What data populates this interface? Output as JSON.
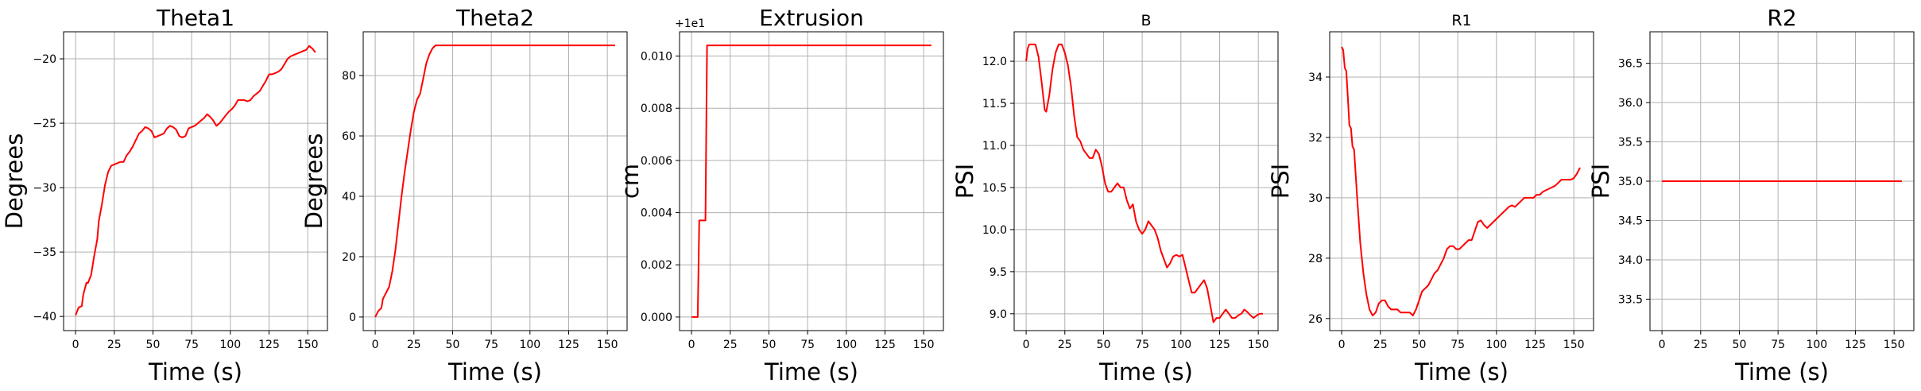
{
  "chart_data": [
    {
      "type": "line",
      "title": "Theta1",
      "xlabel": "Time (s)",
      "ylabel": "Degrees",
      "offset_label": "",
      "xlim": [
        -7.75,
        162.75
      ],
      "ylim": [
        -41.1,
        -17.9
      ],
      "xticks": [
        0,
        25,
        50,
        75,
        100,
        125,
        150
      ],
      "yticks": [
        -40,
        -35,
        -30,
        -25,
        -20
      ],
      "ytick_labels": [
        "−40",
        "−35",
        "−30",
        "−25",
        "−20"
      ],
      "grid": true,
      "color": "#ff0000",
      "x": [
        0,
        2,
        4,
        5,
        7,
        8,
        10,
        12,
        14,
        15,
        17,
        19,
        21,
        23,
        25,
        27,
        29,
        31,
        33,
        35,
        37,
        39,
        41,
        43,
        45,
        47,
        49,
        51,
        53,
        55,
        57,
        59,
        61,
        63,
        65,
        67,
        69,
        71,
        73,
        75,
        77,
        79,
        81,
        83,
        85,
        87,
        89,
        91,
        93,
        95,
        97,
        99,
        101,
        103,
        105,
        107,
        109,
        111,
        113,
        115,
        117,
        119,
        121,
        123,
        125,
        127,
        129,
        131,
        133,
        135,
        137,
        139,
        141,
        143,
        145,
        147,
        149,
        151,
        153,
        155
      ],
      "values": [
        -39.9,
        -39.3,
        -39.2,
        -38.3,
        -37.4,
        -37.4,
        -36.8,
        -35.3,
        -34.0,
        -32.6,
        -31.3,
        -29.8,
        -28.8,
        -28.3,
        -28.2,
        -28.1,
        -28.0,
        -28.0,
        -27.5,
        -27.2,
        -26.8,
        -26.3,
        -25.8,
        -25.6,
        -25.3,
        -25.4,
        -25.6,
        -26.1,
        -26.0,
        -25.9,
        -25.8,
        -25.4,
        -25.2,
        -25.3,
        -25.5,
        -26.0,
        -26.1,
        -26.0,
        -25.4,
        -25.3,
        -25.2,
        -25.0,
        -24.8,
        -24.6,
        -24.3,
        -24.5,
        -24.8,
        -25.2,
        -25.0,
        -24.7,
        -24.4,
        -24.1,
        -23.9,
        -23.6,
        -23.2,
        -23.2,
        -23.2,
        -23.3,
        -23.2,
        -22.9,
        -22.7,
        -22.5,
        -22.1,
        -21.7,
        -21.2,
        -21.2,
        -21.1,
        -21.0,
        -20.8,
        -20.4,
        -20.0,
        -19.8,
        -19.7,
        -19.6,
        -19.5,
        -19.4,
        -19.3,
        -19.0,
        -19.2,
        -19.5
      ]
    },
    {
      "type": "line",
      "title": "Theta2",
      "xlabel": "Time (s)",
      "ylabel": "Degrees",
      "offset_label": "",
      "xlim": [
        -7.75,
        162.75
      ],
      "ylim": [
        -4.5,
        94.5
      ],
      "xticks": [
        0,
        25,
        50,
        75,
        100,
        125,
        150
      ],
      "yticks": [
        0,
        20,
        40,
        60,
        80
      ],
      "ytick_labels": [
        "0",
        "20",
        "40",
        "60",
        "80"
      ],
      "grid": true,
      "color": "#ff0000",
      "x": [
        0,
        2,
        4,
        5,
        7,
        9,
        11,
        13,
        15,
        17,
        19,
        21,
        23,
        25,
        27,
        29,
        31,
        33,
        35,
        37,
        39,
        40,
        45,
        60,
        80,
        100,
        120,
        140,
        155
      ],
      "values": [
        0,
        2,
        3,
        6,
        8,
        10,
        15,
        22,
        31,
        40,
        48,
        55,
        62,
        68,
        72,
        74,
        79,
        84,
        87,
        89,
        90,
        90,
        90,
        90,
        90,
        90,
        90,
        90,
        90
      ]
    },
    {
      "type": "line",
      "title": "Extrusion",
      "xlabel": "Time (s)",
      "ylabel": "cm",
      "offset_label": "+1e1",
      "xlim": [
        -7.75,
        162.75
      ],
      "ylim": [
        -0.00052,
        0.01093
      ],
      "xticks": [
        0,
        25,
        50,
        75,
        100,
        125,
        150
      ],
      "yticks": [
        0.0,
        0.002,
        0.004,
        0.006,
        0.008,
        0.01
      ],
      "ytick_labels": [
        "0.000",
        "0.002",
        "0.004",
        "0.006",
        "0.008",
        "0.010"
      ],
      "grid": true,
      "color": "#ff0000",
      "x": [
        0,
        4,
        5,
        8,
        9,
        10,
        11,
        155
      ],
      "values": [
        0.0,
        0.0,
        0.0037,
        0.0037,
        0.0037,
        0.01041,
        0.01041,
        0.01041
      ]
    },
    {
      "type": "line",
      "title": "B",
      "xlabel": "Time (s)",
      "ylabel": "PSI",
      "offset_label": "",
      "xlim": [
        -7.75,
        162.75
      ],
      "ylim": [
        8.8,
        12.35
      ],
      "xticks": [
        0,
        25,
        50,
        75,
        100,
        125,
        150
      ],
      "yticks": [
        9.0,
        9.5,
        10.0,
        10.5,
        11.0,
        11.5,
        12.0
      ],
      "ytick_labels": [
        "9.0",
        "9.5",
        "10.0",
        "10.5",
        "11.0",
        "11.5",
        "12.0"
      ],
      "grid": true,
      "color": "#ff0000",
      "x": [
        0,
        1,
        2,
        4,
        6,
        8,
        10,
        12,
        13,
        15,
        17,
        19,
        21,
        23,
        25,
        27,
        29,
        31,
        33,
        35,
        37,
        39,
        41,
        43,
        45,
        47,
        49,
        51,
        53,
        55,
        57,
        59,
        61,
        63,
        65,
        67,
        69,
        71,
        73,
        75,
        77,
        79,
        81,
        83,
        85,
        87,
        89,
        91,
        93,
        95,
        97,
        99,
        101,
        103,
        105,
        107,
        109,
        111,
        113,
        115,
        117,
        119,
        121,
        123,
        125,
        127,
        129,
        131,
        133,
        135,
        137,
        139,
        141,
        143,
        145,
        147,
        149,
        151,
        153
      ],
      "values": [
        12.0,
        12.15,
        12.2,
        12.2,
        12.2,
        12.05,
        11.75,
        11.42,
        11.4,
        11.6,
        11.9,
        12.1,
        12.2,
        12.2,
        12.1,
        11.95,
        11.7,
        11.35,
        11.1,
        11.05,
        10.95,
        10.9,
        10.85,
        10.85,
        10.95,
        10.9,
        10.75,
        10.55,
        10.45,
        10.45,
        10.5,
        10.55,
        10.5,
        10.5,
        10.35,
        10.25,
        10.3,
        10.1,
        10.0,
        9.95,
        10.0,
        10.1,
        10.05,
        10.0,
        9.9,
        9.75,
        9.65,
        9.55,
        9.6,
        9.68,
        9.7,
        9.68,
        9.7,
        9.55,
        9.4,
        9.25,
        9.25,
        9.3,
        9.35,
        9.4,
        9.3,
        9.1,
        8.9,
        8.95,
        8.95,
        9.0,
        9.05,
        9.0,
        8.95,
        8.95,
        8.98,
        9.0,
        9.05,
        9.02,
        8.98,
        8.95,
        8.98,
        9.0,
        9.0
      ]
    },
    {
      "type": "line",
      "title": "R1",
      "xlabel": "Time (s)",
      "ylabel": "PSI",
      "offset_label": "",
      "xlim": [
        -7.75,
        162.75
      ],
      "ylim": [
        25.6,
        35.5
      ],
      "xticks": [
        0,
        25,
        50,
        75,
        100,
        125,
        150
      ],
      "yticks": [
        26,
        28,
        30,
        32,
        34
      ],
      "ytick_labels": [
        "26",
        "28",
        "30",
        "32",
        "34"
      ],
      "grid": true,
      "color": "#ff0000",
      "x": [
        0,
        1,
        2,
        3,
        4,
        5,
        6,
        7,
        8,
        10,
        12,
        14,
        16,
        18,
        20,
        22,
        24,
        26,
        28,
        30,
        32,
        34,
        36,
        38,
        40,
        42,
        44,
        46,
        48,
        50,
        52,
        54,
        56,
        58,
        60,
        62,
        64,
        66,
        68,
        70,
        72,
        74,
        76,
        78,
        80,
        82,
        84,
        86,
        88,
        90,
        92,
        94,
        96,
        98,
        100,
        102,
        104,
        106,
        108,
        110,
        112,
        114,
        116,
        118,
        120,
        122,
        124,
        126,
        128,
        130,
        132,
        134,
        136,
        138,
        140,
        142,
        144,
        146,
        148,
        150,
        152,
        154
      ],
      "values": [
        35.0,
        34.9,
        34.3,
        34.2,
        33.3,
        32.4,
        32.3,
        31.7,
        31.6,
        30.0,
        28.5,
        27.5,
        26.8,
        26.3,
        26.1,
        26.2,
        26.5,
        26.6,
        26.6,
        26.4,
        26.3,
        26.3,
        26.3,
        26.2,
        26.2,
        26.2,
        26.2,
        26.1,
        26.3,
        26.6,
        26.9,
        27.0,
        27.1,
        27.3,
        27.5,
        27.6,
        27.8,
        28.0,
        28.3,
        28.4,
        28.4,
        28.3,
        28.3,
        28.4,
        28.5,
        28.6,
        28.6,
        28.9,
        29.2,
        29.25,
        29.1,
        29.0,
        29.1,
        29.2,
        29.3,
        29.4,
        29.5,
        29.6,
        29.7,
        29.75,
        29.7,
        29.8,
        29.9,
        30.0,
        30.0,
        30.0,
        30.0,
        30.1,
        30.1,
        30.2,
        30.25,
        30.3,
        30.35,
        30.4,
        30.5,
        30.6,
        30.6,
        30.6,
        30.6,
        30.65,
        30.8,
        31.0
      ]
    },
    {
      "type": "line",
      "title": "R2",
      "xlabel": "Time (s)",
      "ylabel": "PSI",
      "offset_label": "",
      "xlim": [
        -7.75,
        162.75
      ],
      "ylim": [
        33.1,
        36.9
      ],
      "xticks": [
        0,
        25,
        50,
        75,
        100,
        125,
        150
      ],
      "yticks": [
        33.5,
        34.0,
        34.5,
        35.0,
        35.5,
        36.0,
        36.5
      ],
      "ytick_labels": [
        "33.5",
        "34.0",
        "34.5",
        "35.0",
        "35.5",
        "36.0",
        "36.5"
      ],
      "grid": true,
      "color": "#ff0000",
      "x": [
        0,
        155
      ],
      "values": [
        35.0,
        35.0
      ]
    }
  ]
}
